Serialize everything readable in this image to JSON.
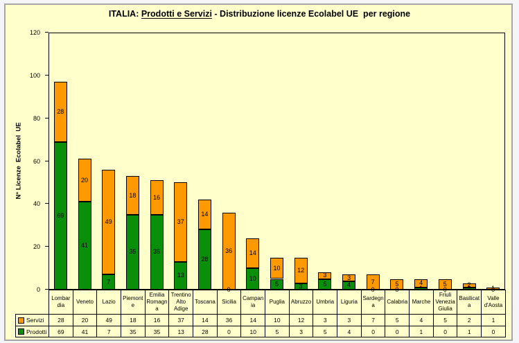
{
  "title": {
    "prefix": "ITALIA: ",
    "underlined": "Prodotti e Servizi",
    "suffix": " - Distribuzione licenze Ecolabel UE  per regione"
  },
  "y_axis": {
    "label": "N° Licenze  Ecolabel  UE",
    "ticks": [
      0,
      20,
      40,
      60,
      80,
      100,
      120
    ],
    "max": 120
  },
  "chart_data": {
    "type": "bar",
    "stacked": true,
    "grid": false,
    "data_labels": true,
    "legend_position": "table-left",
    "title": "ITALIA: Prodotti e Servizi - Distribuzione licenze Ecolabel UE  per regione",
    "xlabel": "",
    "ylabel": "N° Licenze  Ecolabel  UE",
    "ylim": [
      0,
      120
    ],
    "ytick_interval": 20,
    "categories": [
      "Lombardia",
      "Veneto",
      "Lazio",
      "Piemonte",
      "Emilia Romagna",
      "Trentino Alto Adige",
      "Toscana",
      "Sicilia",
      "Campania",
      "Puglia",
      "Abruzzo",
      "Umbria",
      "Liguria",
      "Sardegna",
      "Calabria",
      "Marche",
      "Friuli Venezia Giulia",
      "Basilicata",
      "Valle d'Aosta"
    ],
    "category_label_lines": [
      [
        "Lombar",
        "dia"
      ],
      [
        "Veneto"
      ],
      [
        "Lazio"
      ],
      [
        "Piemont",
        "e"
      ],
      [
        "Emilia",
        "Romagn",
        "a"
      ],
      [
        "Trentino",
        "Alto",
        "Adige"
      ],
      [
        "Toscana"
      ],
      [
        "Sicilia"
      ],
      [
        "Campan",
        "ia"
      ],
      [
        "Puglia"
      ],
      [
        "Abruzzo"
      ],
      [
        "Umbria"
      ],
      [
        "Liguria"
      ],
      [
        "Sardegn",
        "a"
      ],
      [
        "Calabria"
      ],
      [
        "Marche"
      ],
      [
        "Friuli",
        "Venezia",
        "Giulia"
      ],
      [
        "Basilicat",
        "a"
      ],
      [
        "Valle",
        "d'Aosta"
      ]
    ],
    "series": [
      {
        "name": "Servizi",
        "color": "#FF9900",
        "stack_position": "top",
        "values": [
          28,
          20,
          49,
          18,
          16,
          37,
          14,
          36,
          14,
          10,
          12,
          3,
          3,
          7,
          5,
          4,
          5,
          2,
          1
        ]
      },
      {
        "name": "Prodotti",
        "color": "#0A8F0A",
        "stack_position": "bottom",
        "values": [
          69,
          41,
          7,
          35,
          35,
          13,
          28,
          0,
          10,
          5,
          3,
          5,
          4,
          0,
          0,
          1,
          0,
          1,
          0
        ]
      }
    ]
  },
  "colors": {
    "chart_background": "#FFFFCC",
    "page_background": "#F5F5F7",
    "frame_border": "#A6A6A6",
    "plot_border": "#000000",
    "servizi": "#FF9900",
    "prodotti": "#0A8F0A",
    "text": "#000000"
  }
}
